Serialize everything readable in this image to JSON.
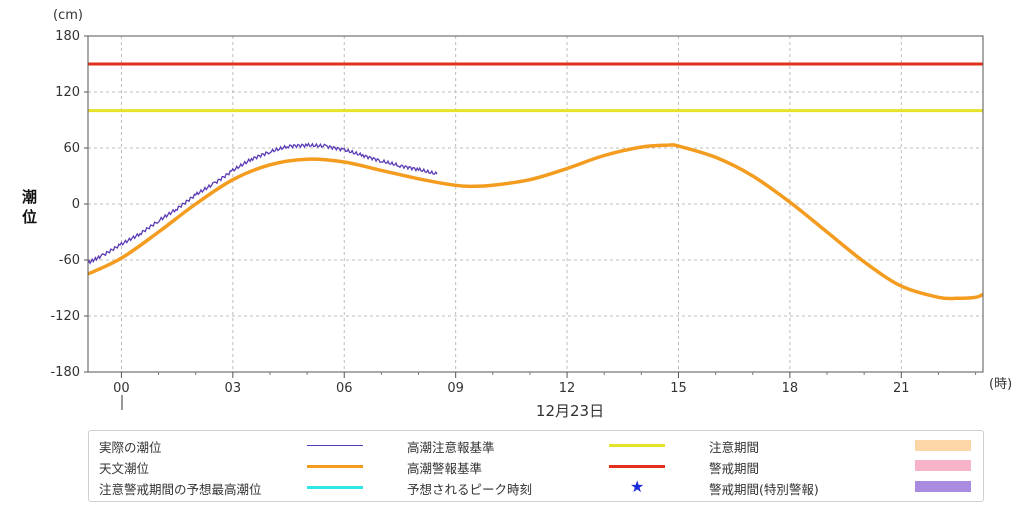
{
  "chart_data": {
    "type": "line",
    "yunit": "(cm)",
    "xunit": "(時)",
    "ylabel": "潮位",
    "date_label": "12月23日",
    "ylim": [
      -180,
      180
    ],
    "yticks": [
      -180,
      -120,
      -60,
      0,
      60,
      120,
      180
    ],
    "xlim": [
      -0.9,
      23.2
    ],
    "xticks": [
      {
        "x": 0,
        "label": "00"
      },
      {
        "x": 3,
        "label": "03"
      },
      {
        "x": 6,
        "label": "06"
      },
      {
        "x": 9,
        "label": "09"
      },
      {
        "x": 12,
        "label": "12"
      },
      {
        "x": 15,
        "label": "15"
      },
      {
        "x": 18,
        "label": "18"
      },
      {
        "x": 21,
        "label": "21"
      }
    ],
    "grid": true,
    "series": [
      {
        "name": "天文潮位",
        "color": "#f39c1f",
        "x": [
          -0.9,
          0,
          1,
          2,
          3,
          4,
          5,
          6,
          7,
          8,
          9,
          9.5,
          10,
          11,
          12,
          13,
          14,
          14.7,
          15,
          16,
          17,
          18,
          19,
          20,
          21,
          22,
          22.5,
          23,
          23.2
        ],
        "y": [
          -75,
          -58,
          -30,
          0,
          26,
          42,
          48,
          45,
          36,
          27,
          20,
          19,
          20,
          26,
          38,
          52,
          61,
          63,
          62,
          50,
          30,
          2,
          -30,
          -62,
          -88,
          -100,
          -101,
          -100,
          -97
        ]
      },
      {
        "name": "実際の潮位",
        "color": "#5b3bb5",
        "x": [
          -0.9,
          -0.5,
          0,
          0.5,
          1,
          1.5,
          2,
          2.5,
          3,
          3.5,
          4,
          4.5,
          5,
          5.5,
          6,
          6.5,
          7,
          7.5,
          8,
          8.5
        ],
        "y": [
          -63,
          -55,
          -43,
          -32,
          -18,
          -5,
          10,
          22,
          36,
          48,
          56,
          62,
          63,
          62,
          58,
          52,
          46,
          41,
          37,
          32
        ]
      }
    ],
    "hlines": [
      {
        "name": "高潮警報基準",
        "value": 150,
        "color": "#e2301c"
      },
      {
        "name": "高潮注意報基準",
        "value": 100,
        "color": "#e6e22a"
      }
    ]
  },
  "legend": {
    "actual": "実際の潮位",
    "astro": "天文潮位",
    "peak_level": "注意警戒期間の予想最高潮位",
    "caution_std": "高潮注意報基準",
    "warning_std": "高潮警報基準",
    "peak_time": "予想されるピーク時刻",
    "caution_period": "注意期間",
    "warning_period": "警戒期間",
    "special_period": "警戒期間(特別警報)"
  },
  "colors": {
    "actual": "#5b3bb5",
    "astro": "#f39c1f",
    "peak_level": "#2ee6e6",
    "caution_std": "#e6e22a",
    "warning_std": "#e2301c",
    "peak_time": "#1a2bd9",
    "caution_period": "#fbd7a8",
    "warning_period": "#f7b3c7",
    "special_period": "#a98be0"
  },
  "icons": {
    "peak_time": "star-icon"
  }
}
